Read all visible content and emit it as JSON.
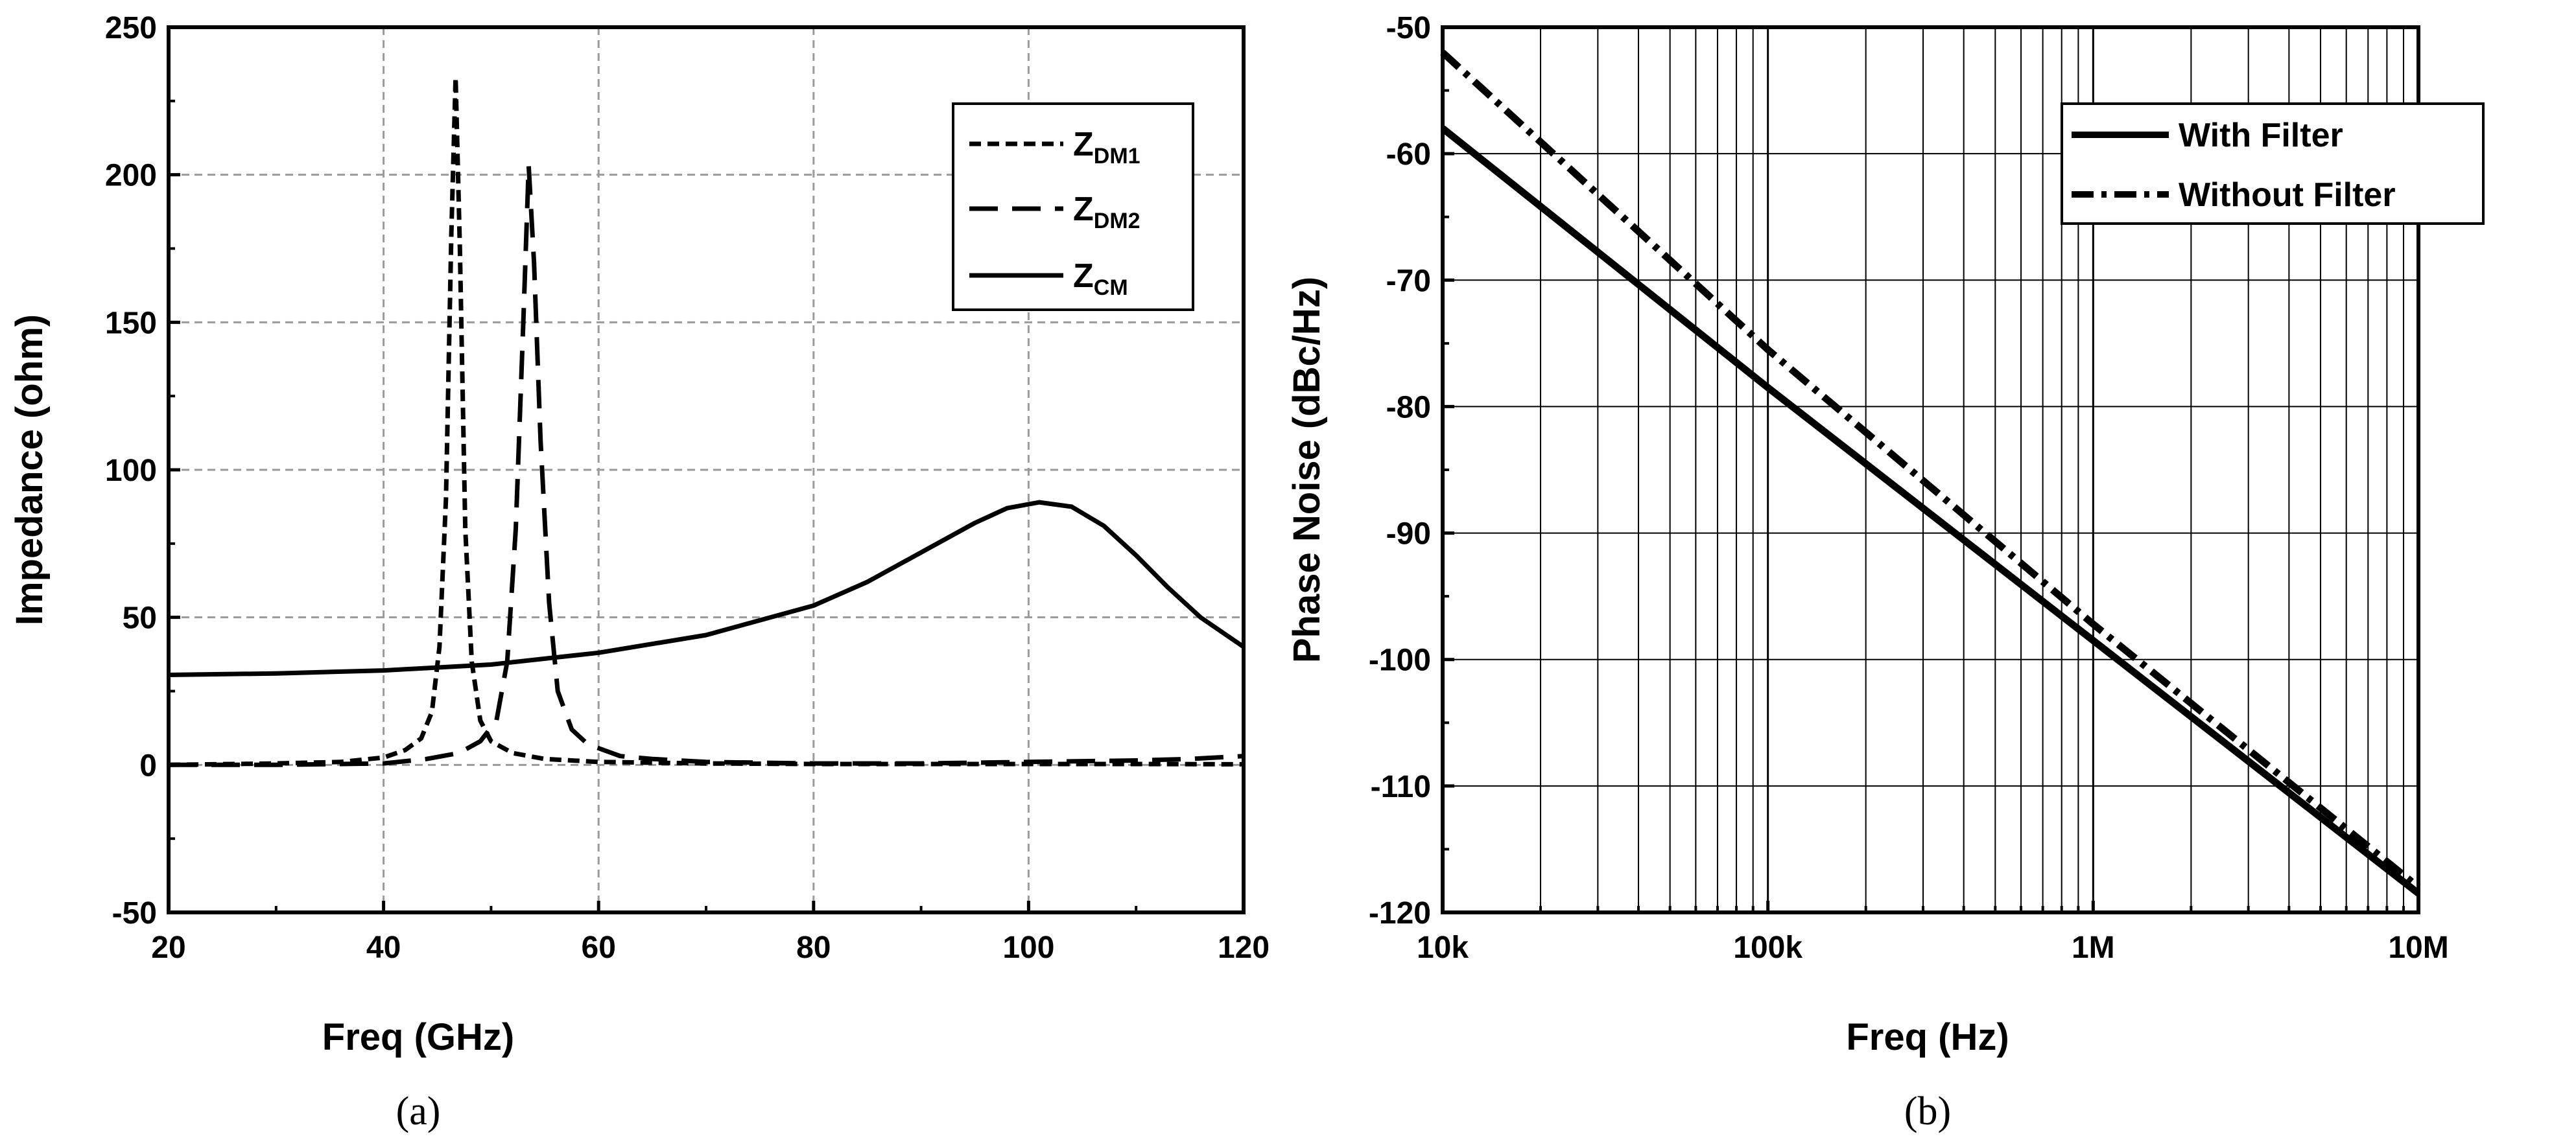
{
  "chart_data": [
    {
      "id": "a",
      "type": "line",
      "panel_label": "(a)",
      "xlabel": "Freq (GHz)",
      "ylabel": "Impedance (ohm)",
      "xlim": [
        20,
        120
      ],
      "ylim": [
        -50,
        250
      ],
      "x_ticks": [
        20,
        40,
        60,
        80,
        100,
        120
      ],
      "y_ticks": [
        -50,
        0,
        50,
        100,
        150,
        200,
        250
      ],
      "grid": true,
      "legend_position": "top-right",
      "series": [
        {
          "name": "Z_DM1",
          "label_main": "Z",
          "label_sub": "DM1",
          "style": "short-dash",
          "x": [
            20,
            30,
            36,
            40,
            42,
            43.5,
            44.5,
            45.2,
            45.8,
            46.3,
            46.7,
            47.1,
            47.6,
            48.2,
            49,
            50,
            52,
            55,
            60,
            70,
            80,
            90,
            100,
            110,
            120
          ],
          "y": [
            0,
            0.5,
            1,
            2.5,
            5,
            9,
            18,
            40,
            90,
            180,
            233,
            175,
            80,
            35,
            15,
            8,
            4,
            2,
            1,
            0.5,
            0.3,
            0.3,
            0.3,
            0.3,
            0.2
          ]
        },
        {
          "name": "Z_DM2",
          "label_main": "Z",
          "label_sub": "DM2",
          "style": "long-dash",
          "x": [
            20,
            30,
            40,
            44,
            47,
            49,
            50.5,
            51.5,
            52.3,
            53,
            53.5,
            54,
            54.6,
            55.4,
            56.2,
            57.5,
            59,
            62,
            65,
            70,
            80,
            90,
            100,
            110,
            115,
            120
          ],
          "y": [
            0,
            0,
            0.5,
            2,
            4,
            8,
            15,
            35,
            80,
            150,
            203,
            170,
            110,
            55,
            25,
            12,
            7,
            3,
            2,
            1,
            0.5,
            0.5,
            1,
            1.5,
            2,
            3
          ]
        },
        {
          "name": "Z_CM",
          "label_main": "Z",
          "label_sub": "CM",
          "style": "solid",
          "x": [
            20,
            30,
            40,
            50,
            60,
            70,
            80,
            85,
            90,
            95,
            98,
            101,
            104,
            107,
            110,
            113,
            116,
            120
          ],
          "y": [
            30.5,
            31,
            32,
            34,
            38,
            44,
            54,
            62,
            72,
            82,
            87,
            89,
            87.5,
            81,
            71,
            60,
            50,
            40
          ]
        }
      ]
    },
    {
      "id": "b",
      "type": "line",
      "panel_label": "(b)",
      "xlabel": "Freq (Hz)",
      "ylabel": "Phase Noise (dBc/Hz)",
      "xscale": "log",
      "xlim": [
        10000,
        10000000
      ],
      "ylim": [
        -120,
        -50
      ],
      "x_ticks": [
        10000,
        100000,
        1000000,
        10000000
      ],
      "x_tick_labels": [
        "10k",
        "100k",
        "1M",
        "10M"
      ],
      "y_ticks": [
        -120,
        -110,
        -100,
        -90,
        -80,
        -70,
        -60,
        -50
      ],
      "grid": true,
      "legend_position": "top-right",
      "series": [
        {
          "name": "With Filter",
          "style": "solid",
          "x": [
            10000,
            100000,
            1000000,
            10000000
          ],
          "y": [
            -58,
            -78.5,
            -98.5,
            -118.5
          ]
        },
        {
          "name": "Without Filter",
          "style": "dash-dot",
          "x": [
            10000,
            100000,
            1000000,
            10000000
          ],
          "y": [
            -52,
            -75.5,
            -97.2,
            -118
          ]
        }
      ]
    }
  ]
}
